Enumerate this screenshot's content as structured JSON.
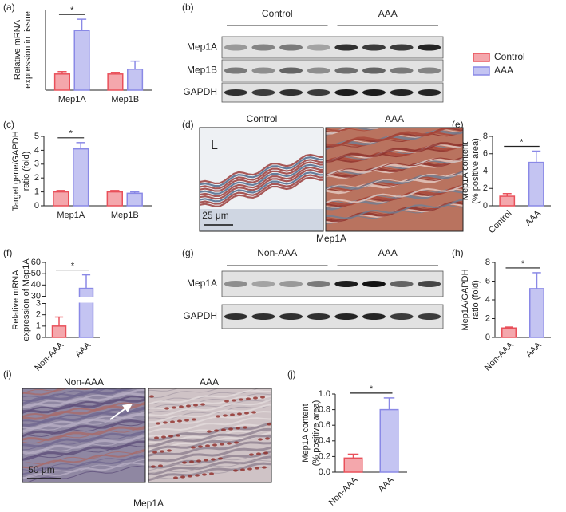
{
  "panels": [
    "(a)",
    "(b)",
    "(c)",
    "(d)",
    "(e)",
    "(f)",
    "(g)",
    "(h)",
    "(i)",
    "(j)"
  ],
  "chart_data": [
    {
      "type": "bar",
      "ylabel": [
        "Relative mRNA",
        "expression in tissue"
      ],
      "categories": [
        "Mep1A",
        "Mep1B"
      ],
      "series": [
        {
          "name": "Control",
          "color": "#e9505a",
          "values": [
            1.0,
            1.0
          ],
          "errors": [
            0.15,
            0.1
          ]
        },
        {
          "name": "AAA",
          "color": "#8a89e6",
          "values": [
            3.7,
            1.3
          ],
          "errors": [
            0.7,
            0.5
          ]
        }
      ],
      "ylim": [
        0,
        5
      ],
      "significance": "*"
    },
    {
      "type": "bar",
      "ylabel": [
        "Target gene/GAPDH",
        "ratio (fold)"
      ],
      "categories": [
        "Mep1A",
        "Mep1B"
      ],
      "series": [
        {
          "name": "Control",
          "color": "#e9505a",
          "values": [
            1.0,
            1.0
          ],
          "errors": [
            0.1,
            0.1
          ]
        },
        {
          "name": "AAA",
          "color": "#8a89e6",
          "values": [
            4.1,
            0.9
          ],
          "errors": [
            0.45,
            0.1
          ]
        }
      ],
      "ylim": [
        0,
        5
      ],
      "yticks": [
        0,
        1,
        2,
        3,
        4,
        5
      ],
      "significance": "*"
    },
    {
      "type": "bar",
      "ylabel": [
        "Mep1A content",
        "(% positive area)"
      ],
      "categories": [
        "Control",
        "AAA"
      ],
      "values": [
        1.1,
        5.0
      ],
      "errors": [
        0.3,
        1.3
      ],
      "colors": [
        "#e9505a",
        "#8a89e6"
      ],
      "ylim": [
        0,
        8
      ],
      "yticks": [
        0,
        2,
        4,
        6,
        8
      ],
      "significance": "*"
    },
    {
      "type": "bar",
      "ylabel": [
        "Relative mRNA",
        "expression of Mep1A"
      ],
      "categories": [
        "Non-AAA",
        "AAA"
      ],
      "values": [
        1.0,
        37
      ],
      "errors": [
        0.8,
        12
      ],
      "colors": [
        "#e9505a",
        "#8a89e6"
      ],
      "ylim": [
        0,
        60
      ],
      "yticks": [
        0,
        1,
        2,
        3,
        30,
        40,
        50,
        60
      ],
      "ybreak": [
        3,
        30
      ],
      "significance": "*"
    },
    {
      "type": "bar",
      "ylabel": [
        "Mep1A/GAPDH",
        "ratio (fold)"
      ],
      "categories": [
        "Non-AAA",
        "AAA"
      ],
      "values": [
        1.0,
        5.2
      ],
      "errors": [
        0.1,
        1.7
      ],
      "colors": [
        "#e9505a",
        "#8a89e6"
      ],
      "ylim": [
        0,
        8
      ],
      "yticks": [
        0,
        2,
        4,
        6,
        8
      ],
      "significance": "*"
    },
    {
      "type": "bar",
      "ylabel": [
        "Mep1A content",
        "(% positive area)"
      ],
      "categories": [
        "Non-AAA",
        "AAA"
      ],
      "values": [
        0.18,
        0.8
      ],
      "errors": [
        0.05,
        0.15
      ],
      "colors": [
        "#e9505a",
        "#8a89e6"
      ],
      "ylim": [
        0,
        1.0
      ],
      "yticks": [
        {
          "value": 0,
          "label": "0.0"
        },
        0.2,
        0.4,
        0.6,
        0.8,
        {
          "value": 1.0,
          "label": "1.0"
        }
      ],
      "significance": "*"
    }
  ],
  "blots": [
    {
      "groups": [
        "Control",
        "AAA"
      ],
      "rows": [
        "Mep1A",
        "Mep1B",
        "GAPDH"
      ]
    },
    {
      "groups": [
        "Non-AAA",
        "AAA"
      ],
      "rows": [
        "Mep1A",
        "GAPDH"
      ]
    }
  ],
  "micrographs": [
    {
      "columns": [
        "Control",
        "AAA"
      ],
      "lumen": "L",
      "scale_bar": "25 μm",
      "stain": "Mep1A"
    },
    {
      "columns": [
        "Non-AAA",
        "AAA"
      ],
      "scale_bar": "50 μm",
      "stain": "Mep1A"
    }
  ]
}
